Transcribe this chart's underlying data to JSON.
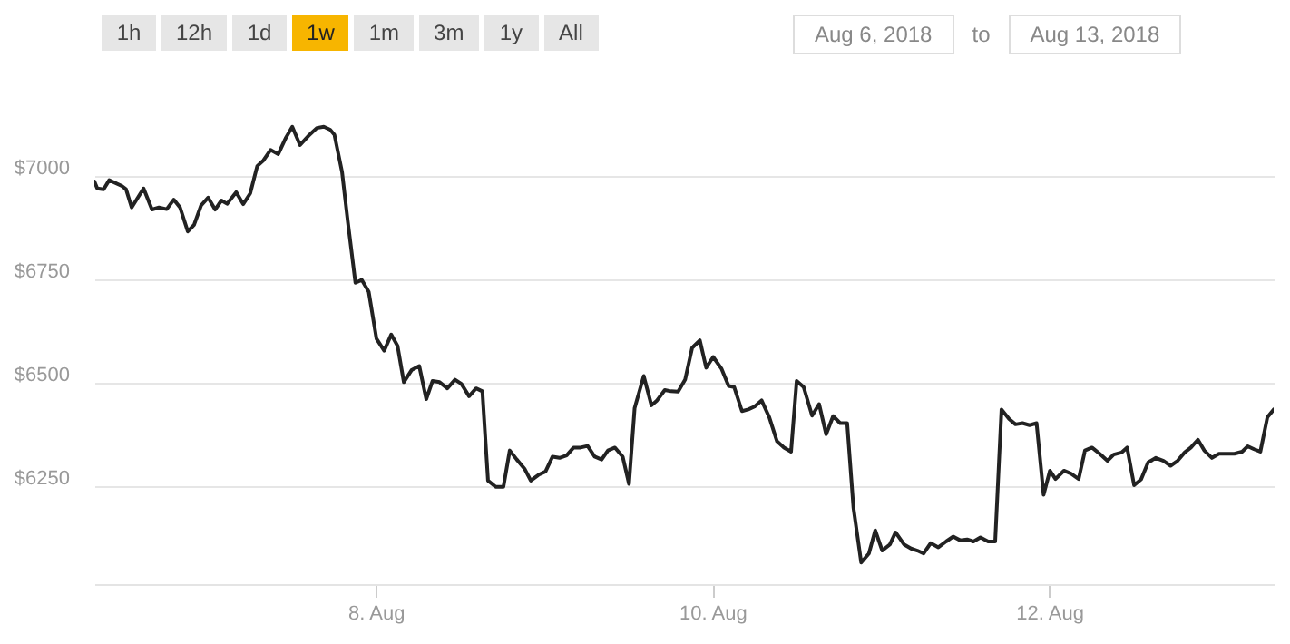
{
  "chart_data": {
    "type": "line",
    "annotations": [
      "1h",
      "12h",
      "1d",
      "1w",
      "1m",
      "3m",
      "1y",
      "All",
      "Aug 6, 2018",
      "to",
      "Aug 13, 2018"
    ],
    "x": [
      "2018-08-06T07:53",
      "2018-08-06T08:18",
      "2018-08-06T09:12",
      "2018-08-06T10:00",
      "2018-08-06T11:48",
      "2018-08-06T12:24",
      "2018-08-06T13:12",
      "2018-08-06T14:54",
      "2018-08-06T16:06",
      "2018-08-06T17:06",
      "2018-08-06T18:12",
      "2018-08-06T19:12",
      "2018-08-06T20:06",
      "2018-08-06T21:12",
      "2018-08-06T22:06",
      "2018-08-06T23:06",
      "2018-08-07T00:06",
      "2018-08-07T01:06",
      "2018-08-07T02:00",
      "2018-08-07T02:48",
      "2018-08-07T04:06",
      "2018-08-07T05:06",
      "2018-08-07T06:06",
      "2018-08-07T07:06",
      "2018-08-07T08:00",
      "2018-08-07T09:00",
      "2018-08-07T10:06",
      "2018-08-07T11:12",
      "2018-08-07T12:06",
      "2018-08-07T13:12",
      "2018-08-07T14:24",
      "2018-08-07T15:36",
      "2018-08-07T16:36",
      "2018-08-07T17:30",
      "2018-08-07T18:06",
      "2018-08-07T19:12",
      "2018-08-07T20:00",
      "2018-08-07T21:06",
      "2018-08-07T22:00",
      "2018-08-07T23:00",
      "2018-08-08T00:06",
      "2018-08-08T01:12",
      "2018-08-08T02:12",
      "2018-08-08T03:06",
      "2018-08-08T04:00",
      "2018-08-08T05:06",
      "2018-08-08T06:12",
      "2018-08-08T07:12",
      "2018-08-08T08:06",
      "2018-08-08T09:06",
      "2018-08-08T10:12",
      "2018-08-08T11:18",
      "2018-08-08T12:12",
      "2018-08-08T13:18",
      "2018-08-08T14:18",
      "2018-08-08T15:12",
      "2018-08-08T16:00",
      "2018-08-08T17:06",
      "2018-08-08T18:12",
      "2018-08-08T19:06",
      "2018-08-08T20:06",
      "2018-08-08T21:12",
      "2018-08-08T22:06",
      "2018-08-08T23:12",
      "2018-08-09T00:12",
      "2018-08-09T01:12",
      "2018-08-09T02:12",
      "2018-08-09T03:12",
      "2018-08-09T04:12",
      "2018-08-09T05:12",
      "2018-08-09T06:12",
      "2018-08-09T07:12",
      "2018-08-09T08:12",
      "2018-08-09T09:06",
      "2018-08-09T10:06",
      "2018-08-09T11:12",
      "2018-08-09T12:06",
      "2018-08-09T12:54",
      "2018-08-09T14:12",
      "2018-08-09T15:18",
      "2018-08-09T16:06",
      "2018-08-09T17:12",
      "2018-08-09T18:06",
      "2018-08-09T19:06",
      "2018-08-09T20:06",
      "2018-08-09T21:06",
      "2018-08-09T22:12",
      "2018-08-09T23:06",
      "2018-08-10T00:06",
      "2018-08-10T01:18",
      "2018-08-10T02:18",
      "2018-08-10T03:06",
      "2018-08-10T04:12",
      "2018-08-10T05:06",
      "2018-08-10T06:00",
      "2018-08-10T07:00",
      "2018-08-10T08:06",
      "2018-08-10T09:12",
      "2018-08-10T10:12",
      "2018-08-10T11:12",
      "2018-08-10T12:00",
      "2018-08-10T13:00",
      "2018-08-10T14:12",
      "2018-08-10T15:12",
      "2018-08-10T16:12",
      "2018-08-10T17:12",
      "2018-08-10T18:12",
      "2018-08-10T19:12",
      "2018-08-10T20:06",
      "2018-08-10T21:12",
      "2018-08-10T22:18",
      "2018-08-10T23:12",
      "2018-08-11T00:12",
      "2018-08-11T01:18",
      "2018-08-11T02:06",
      "2018-08-11T03:18",
      "2018-08-11T04:18",
      "2018-08-11T05:12",
      "2018-08-11T06:06",
      "2018-08-11T07:06",
      "2018-08-11T08:12",
      "2018-08-11T09:18",
      "2018-08-11T10:18",
      "2018-08-11T11:18",
      "2018-08-11T12:18",
      "2018-08-11T13:12",
      "2018-08-11T14:12",
      "2018-08-11T15:18",
      "2018-08-11T16:18",
      "2018-08-11T17:12",
      "2018-08-11T18:18",
      "2018-08-11T19:12",
      "2018-08-11T20:12",
      "2018-08-11T21:12",
      "2018-08-11T22:12",
      "2018-08-11T23:12",
      "2018-08-12T00:06",
      "2018-08-12T00:54",
      "2018-08-12T02:06",
      "2018-08-12T03:06",
      "2018-08-12T04:12",
      "2018-08-12T05:06",
      "2018-08-12T06:06",
      "2018-08-12T07:12",
      "2018-08-12T08:18",
      "2018-08-12T09:12",
      "2018-08-12T10:18",
      "2018-08-12T11:06",
      "2018-08-12T12:06",
      "2018-08-12T13:06",
      "2018-08-12T14:06",
      "2018-08-12T15:12",
      "2018-08-12T16:18",
      "2018-08-12T17:18",
      "2018-08-12T18:18",
      "2018-08-12T19:18",
      "2018-08-12T20:12",
      "2018-08-12T21:12",
      "2018-08-12T22:06",
      "2018-08-12T23:12",
      "2018-08-13T00:12",
      "2018-08-13T01:18",
      "2018-08-13T02:24",
      "2018-08-13T03:30",
      "2018-08-13T04:18",
      "2018-08-13T05:12",
      "2018-08-13T06:06",
      "2018-08-13T07:06",
      "2018-08-13T08:00"
    ],
    "series": [
      {
        "color": "#222222",
        "values": [
          6988,
          6971,
          6969,
          6991,
          6977,
          6969,
          6925,
          6971,
          6920,
          6925,
          6921,
          6944,
          6925,
          6867,
          6883,
          6930,
          6949,
          6920,
          6942,
          6934,
          6962,
          6933,
          6959,
          7025,
          7039,
          7064,
          7054,
          7094,
          7120,
          7076,
          7098,
          7117,
          7120,
          7113,
          7101,
          7010,
          6893,
          6743,
          6750,
          6721,
          6608,
          6579,
          6618,
          6591,
          6503,
          6532,
          6542,
          6462,
          6506,
          6503,
          6488,
          6509,
          6499,
          6469,
          6488,
          6481,
          6265,
          6250,
          6250,
          6338,
          6316,
          6294,
          6265,
          6279,
          6287,
          6323,
          6320,
          6326,
          6345,
          6345,
          6349,
          6323,
          6316,
          6338,
          6345,
          6323,
          6257,
          6440,
          6518,
          6447,
          6459,
          6484,
          6481,
          6480,
          6509,
          6586,
          6604,
          6538,
          6564,
          6535,
          6494,
          6491,
          6433,
          6437,
          6444,
          6459,
          6418,
          6360,
          6345,
          6335,
          6506,
          6491,
          6422,
          6450,
          6377,
          6421,
          6404,
          6404,
          6199,
          6067,
          6089,
          6145,
          6096,
          6111,
          6140,
          6111,
          6101,
          6096,
          6089,
          6114,
          6104,
          6118,
          6130,
          6121,
          6123,
          6118,
          6128,
          6118,
          6118,
          6437,
          6414,
          6401,
          6404,
          6399,
          6404,
          6231,
          6289,
          6269,
          6289,
          6282,
          6269,
          6338,
          6345,
          6330,
          6313,
          6328,
          6333,
          6345,
          6254,
          6268,
          6309,
          6320,
          6313,
          6301,
          6313,
          6333,
          6345,
          6364,
          6338,
          6320,
          6330,
          6330,
          6330,
          6335,
          6348,
          6341,
          6335,
          6418,
          6437
        ]
      }
    ],
    "xlim": [
      "2018-08-06T07:53",
      "2018-08-13T08:00"
    ],
    "xticks": [
      {
        "value": "2018-08-08",
        "label": "8. Aug"
      },
      {
        "value": "2018-08-10",
        "label": "10. Aug"
      },
      {
        "value": "2018-08-12",
        "label": "12. Aug"
      }
    ],
    "ylim": [
      6015,
      7251
    ],
    "yticks": [
      {
        "value": 6250,
        "label": "$6250"
      },
      {
        "value": 6500,
        "label": "$6500"
      },
      {
        "value": 6750,
        "label": "$6750"
      },
      {
        "value": 7000,
        "label": "$7000"
      }
    ],
    "grid": "y",
    "marker": "none",
    "line_style": "solid"
  }
}
